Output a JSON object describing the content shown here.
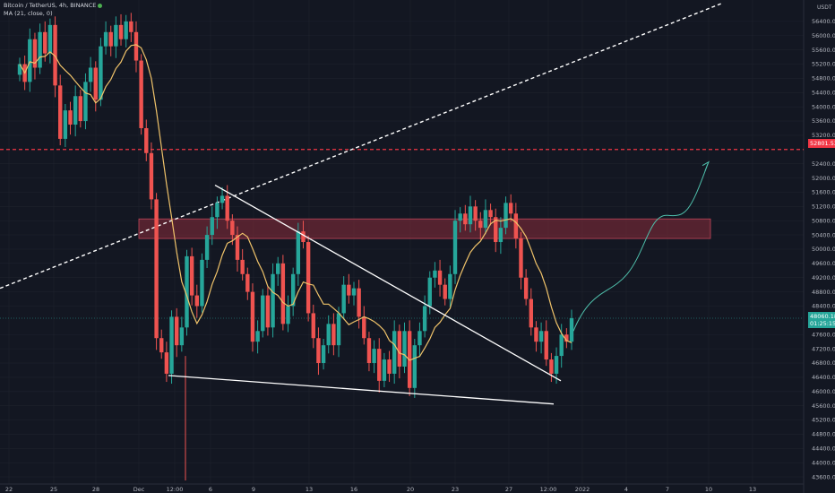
{
  "legend": {
    "title": "Bitcoin / TetherUS, 4h, BINANCE",
    "ma": "MA (21, close, 0)"
  },
  "currency": "USDT",
  "price_tags": {
    "resistance": "52801.53",
    "current": "48060.18",
    "countdown": "01:25:15"
  },
  "colors": {
    "background": "#131722",
    "up": "#26a69a",
    "down": "#ef5350",
    "ma": "#f0c36a",
    "resistance": "#f23645",
    "zone": "#8b2b3a",
    "projection": "#4fbfab"
  },
  "chart_data": {
    "type": "candlestick",
    "y_ticks": [
      "56400.00",
      "56000.00",
      "55600.00",
      "55200.00",
      "54800.00",
      "54400.00",
      "54000.00",
      "53600.00",
      "53200.00",
      "52400.00",
      "52000.00",
      "51600.00",
      "51200.00",
      "50800.00",
      "50400.00",
      "50000.00",
      "49600.00",
      "49200.00",
      "48800.00",
      "48400.00",
      "47600.00",
      "47200.00",
      "46800.00",
      "46400.00",
      "46000.00",
      "45600.00",
      "45200.00",
      "44800.00",
      "44400.00",
      "44000.00",
      "43600.00"
    ],
    "x_ticks": [
      "22",
      "25",
      "28",
      "Dec",
      "12:00",
      "6",
      "9",
      "13",
      "16",
      "20",
      "23",
      "27",
      "12:00",
      "2022",
      "4",
      "7",
      "10",
      "13"
    ],
    "ylim": [
      43400,
      56800
    ],
    "closes": [
      55200,
      54700,
      55900,
      55100,
      56100,
      55500,
      56300,
      54600,
      53100,
      53900,
      53500,
      54300,
      53600,
      54700,
      55100,
      54200,
      55700,
      56100,
      55700,
      56300,
      55900,
      56400,
      56100,
      55300,
      53400,
      52700,
      51400,
      47500,
      47100,
      46500,
      48100,
      47300,
      47800,
      49800,
      48700,
      48400,
      49700,
      50400,
      50900,
      51300,
      51500,
      50800,
      50400,
      49700,
      49300,
      48800,
      47400,
      47700,
      48700,
      47800,
      49300,
      49600,
      47900,
      48400,
      49300,
      50500,
      50200,
      48200,
      47500,
      46800,
      47300,
      47900,
      47300,
      48200,
      49000,
      48700,
      48900,
      48100,
      47500,
      46800,
      47200,
      46300,
      46900,
      46500,
      47700,
      46700,
      47700,
      46100,
      47300,
      47700,
      48400,
      49200,
      49400,
      49000,
      48600,
      49300,
      50800,
      51000,
      50700,
      51200,
      50800,
      50600,
      51100,
      50900,
      50200,
      50600,
      51300,
      51000,
      50300,
      49200,
      48600,
      47800,
      47400,
      47700,
      46900,
      46500,
      47000,
      47600,
      47400,
      48060
    ],
    "ma_closes_note": ""
  }
}
